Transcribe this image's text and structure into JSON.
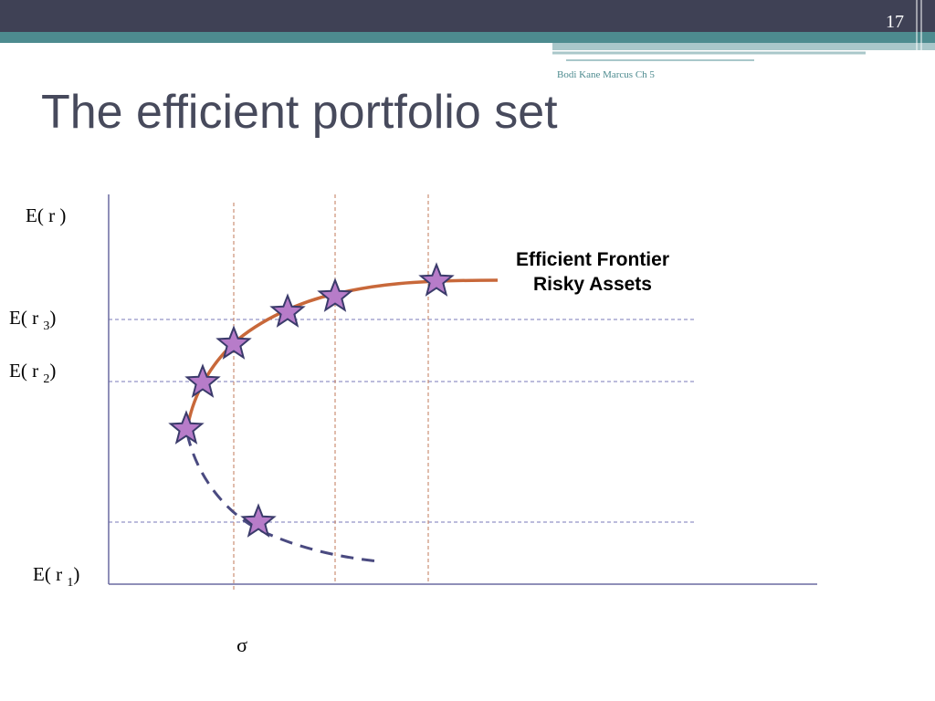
{
  "header": {
    "page_number": "17",
    "source": "Bodi Kane Marcus Ch 5",
    "title": "The efficient portfolio set"
  },
  "diagram": {
    "y_axis_label": "E( r )",
    "levels": [
      {
        "prefix": "E( r ",
        "sub": "3",
        "close": ")"
      },
      {
        "prefix": "E( r ",
        "sub": "2",
        "close": ")"
      },
      {
        "prefix": "E( r ",
        "sub": "1",
        "close": ")"
      }
    ],
    "frontier_label": [
      "Efficient Frontier",
      "Risky Assets"
    ],
    "x_axis_label": "σ"
  }
}
